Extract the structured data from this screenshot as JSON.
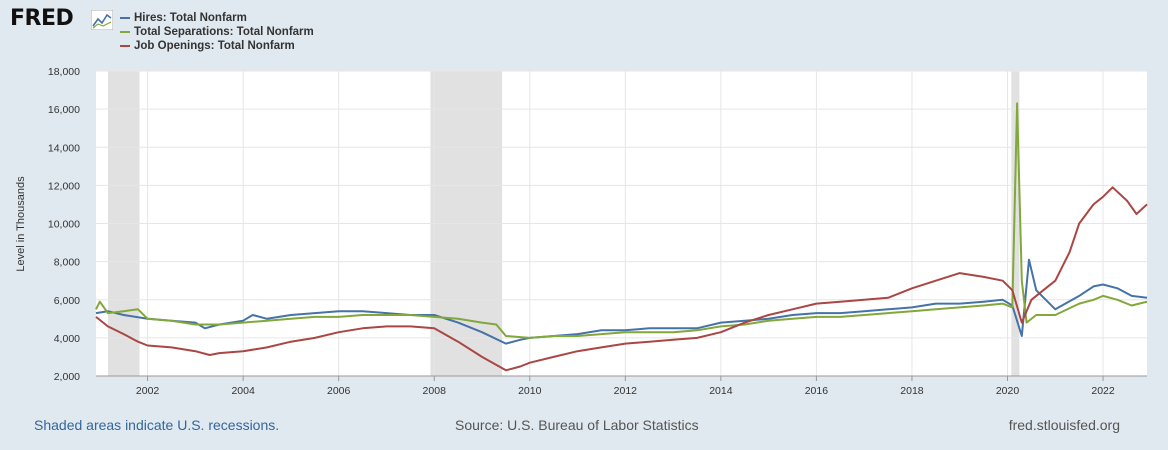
{
  "brand": {
    "logo_text": "FRED",
    "logo_icon": "chart-line-icon"
  },
  "footer": {
    "recession_note": "Shaded areas indicate U.S. recessions.",
    "source": "Source: U.S. Bureau of Labor Statistics",
    "site": "fred.stlouisfed.org"
  },
  "chart_data": {
    "type": "line",
    "title": "",
    "ylabel": "Level in Thousands",
    "xlabel": "",
    "ylim": [
      2000,
      18000
    ],
    "xlim": [
      2000.92,
      2022.92
    ],
    "yticks": [
      2000,
      4000,
      6000,
      8000,
      10000,
      12000,
      14000,
      16000,
      18000
    ],
    "ytick_labels": [
      "2,000",
      "4,000",
      "6,000",
      "8,000",
      "10,000",
      "12,000",
      "14,000",
      "16,000",
      "18,000"
    ],
    "xticks": [
      2002,
      2004,
      2006,
      2008,
      2010,
      2012,
      2014,
      2016,
      2018,
      2020,
      2022
    ],
    "grid": true,
    "legend_position": "top-left",
    "recessions": [
      [
        2001.17,
        2001.83
      ],
      [
        2007.92,
        2009.42
      ],
      [
        2020.08,
        2020.25
      ]
    ],
    "series": [
      {
        "name": "Hires: Total Nonfarm",
        "color": "#4572a7",
        "points": [
          [
            2000.92,
            5300
          ],
          [
            2001.17,
            5400
          ],
          [
            2001.5,
            5200
          ],
          [
            2002.0,
            5000
          ],
          [
            2002.5,
            4900
          ],
          [
            2003.0,
            4800
          ],
          [
            2003.2,
            4500
          ],
          [
            2003.5,
            4700
          ],
          [
            2004.0,
            4900
          ],
          [
            2004.2,
            5200
          ],
          [
            2004.5,
            5000
          ],
          [
            2005.0,
            5200
          ],
          [
            2005.5,
            5300
          ],
          [
            2006.0,
            5400
          ],
          [
            2006.5,
            5400
          ],
          [
            2007.0,
            5300
          ],
          [
            2007.5,
            5200
          ],
          [
            2008.0,
            5200
          ],
          [
            2008.5,
            4800
          ],
          [
            2009.0,
            4300
          ],
          [
            2009.5,
            3700
          ],
          [
            2009.8,
            3900
          ],
          [
            2010.0,
            4000
          ],
          [
            2010.5,
            4100
          ],
          [
            2011.0,
            4200
          ],
          [
            2011.5,
            4400
          ],
          [
            2012.0,
            4400
          ],
          [
            2012.5,
            4500
          ],
          [
            2013.0,
            4500
          ],
          [
            2013.5,
            4500
          ],
          [
            2014.0,
            4800
          ],
          [
            2014.5,
            4900
          ],
          [
            2015.0,
            5000
          ],
          [
            2015.5,
            5200
          ],
          [
            2016.0,
            5300
          ],
          [
            2016.5,
            5300
          ],
          [
            2017.0,
            5400
          ],
          [
            2017.5,
            5500
          ],
          [
            2018.0,
            5600
          ],
          [
            2018.5,
            5800
          ],
          [
            2019.0,
            5800
          ],
          [
            2019.5,
            5900
          ],
          [
            2019.9,
            6000
          ],
          [
            2020.1,
            5700
          ],
          [
            2020.3,
            4100
          ],
          [
            2020.45,
            8100
          ],
          [
            2020.6,
            6500
          ],
          [
            2021.0,
            5500
          ],
          [
            2021.5,
            6200
          ],
          [
            2021.8,
            6700
          ],
          [
            2022.0,
            6800
          ],
          [
            2022.3,
            6600
          ],
          [
            2022.6,
            6200
          ],
          [
            2022.92,
            6100
          ]
        ]
      },
      {
        "name": "Total Separations: Total Nonfarm",
        "color": "#82a73a",
        "points": [
          [
            2000.92,
            5500
          ],
          [
            2001.0,
            5900
          ],
          [
            2001.17,
            5300
          ],
          [
            2001.5,
            5400
          ],
          [
            2001.8,
            5500
          ],
          [
            2002.0,
            5000
          ],
          [
            2002.5,
            4900
          ],
          [
            2003.0,
            4700
          ],
          [
            2003.5,
            4700
          ],
          [
            2004.0,
            4800
          ],
          [
            2004.5,
            4900
          ],
          [
            2005.0,
            5000
          ],
          [
            2005.5,
            5100
          ],
          [
            2006.0,
            5100
          ],
          [
            2006.5,
            5200
          ],
          [
            2007.0,
            5200
          ],
          [
            2007.5,
            5200
          ],
          [
            2008.0,
            5100
          ],
          [
            2008.5,
            5000
          ],
          [
            2009.0,
            4800
          ],
          [
            2009.3,
            4700
          ],
          [
            2009.5,
            4100
          ],
          [
            2010.0,
            4000
          ],
          [
            2010.5,
            4100
          ],
          [
            2011.0,
            4100
          ],
          [
            2011.5,
            4200
          ],
          [
            2012.0,
            4300
          ],
          [
            2012.5,
            4300
          ],
          [
            2013.0,
            4300
          ],
          [
            2013.5,
            4400
          ],
          [
            2014.0,
            4600
          ],
          [
            2014.5,
            4700
          ],
          [
            2015.0,
            4900
          ],
          [
            2015.5,
            5000
          ],
          [
            2016.0,
            5100
          ],
          [
            2016.5,
            5100
          ],
          [
            2017.0,
            5200
          ],
          [
            2017.5,
            5300
          ],
          [
            2018.0,
            5400
          ],
          [
            2018.5,
            5500
          ],
          [
            2019.0,
            5600
          ],
          [
            2019.5,
            5700
          ],
          [
            2019.9,
            5800
          ],
          [
            2020.1,
            5600
          ],
          [
            2020.2,
            16300
          ],
          [
            2020.3,
            7000
          ],
          [
            2020.4,
            4800
          ],
          [
            2020.6,
            5200
          ],
          [
            2021.0,
            5200
          ],
          [
            2021.5,
            5800
          ],
          [
            2021.8,
            6000
          ],
          [
            2022.0,
            6200
          ],
          [
            2022.3,
            6000
          ],
          [
            2022.6,
            5700
          ],
          [
            2022.92,
            5900
          ]
        ]
      },
      {
        "name": "Job Openings: Total Nonfarm",
        "color": "#aa4643",
        "points": [
          [
            2000.92,
            5100
          ],
          [
            2001.17,
            4600
          ],
          [
            2001.5,
            4200
          ],
          [
            2001.8,
            3800
          ],
          [
            2002.0,
            3600
          ],
          [
            2002.5,
            3500
          ],
          [
            2003.0,
            3300
          ],
          [
            2003.3,
            3100
          ],
          [
            2003.5,
            3200
          ],
          [
            2004.0,
            3300
          ],
          [
            2004.5,
            3500
          ],
          [
            2005.0,
            3800
          ],
          [
            2005.5,
            4000
          ],
          [
            2006.0,
            4300
          ],
          [
            2006.5,
            4500
          ],
          [
            2007.0,
            4600
          ],
          [
            2007.5,
            4600
          ],
          [
            2008.0,
            4500
          ],
          [
            2008.5,
            3800
          ],
          [
            2009.0,
            3000
          ],
          [
            2009.5,
            2300
          ],
          [
            2009.8,
            2500
          ],
          [
            2010.0,
            2700
          ],
          [
            2010.5,
            3000
          ],
          [
            2011.0,
            3300
          ],
          [
            2011.5,
            3500
          ],
          [
            2012.0,
            3700
          ],
          [
            2012.5,
            3800
          ],
          [
            2013.0,
            3900
          ],
          [
            2013.5,
            4000
          ],
          [
            2014.0,
            4300
          ],
          [
            2014.5,
            4800
          ],
          [
            2015.0,
            5200
          ],
          [
            2015.5,
            5500
          ],
          [
            2016.0,
            5800
          ],
          [
            2016.5,
            5900
          ],
          [
            2017.0,
            6000
          ],
          [
            2017.5,
            6100
          ],
          [
            2018.0,
            6600
          ],
          [
            2018.5,
            7000
          ],
          [
            2019.0,
            7400
          ],
          [
            2019.5,
            7200
          ],
          [
            2019.9,
            7000
          ],
          [
            2020.1,
            6500
          ],
          [
            2020.3,
            4800
          ],
          [
            2020.5,
            6000
          ],
          [
            2020.8,
            6600
          ],
          [
            2021.0,
            7000
          ],
          [
            2021.3,
            8500
          ],
          [
            2021.5,
            10000
          ],
          [
            2021.8,
            11000
          ],
          [
            2022.0,
            11400
          ],
          [
            2022.2,
            11900
          ],
          [
            2022.5,
            11200
          ],
          [
            2022.7,
            10500
          ],
          [
            2022.92,
            11000
          ]
        ]
      }
    ]
  }
}
